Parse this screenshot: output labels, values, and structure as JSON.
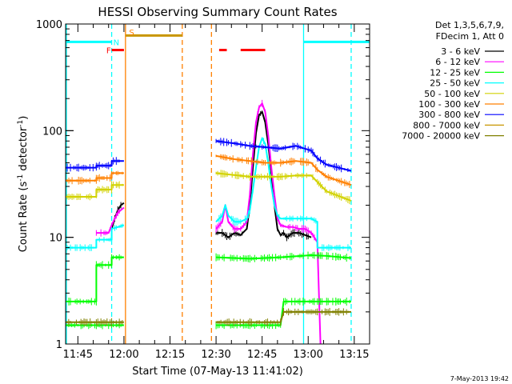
{
  "chart_data": {
    "type": "line",
    "title": "HESSI Observing Summary Count Rates",
    "xlabel": "Start Time (07-May-13 11:41:02)",
    "ylabel_main": "Count Rate (s",
    "ylabel_sup1": "-1",
    "ylabel_mid": " detector",
    "ylabel_sup2": "-1",
    "ylabel_end": ")",
    "x_unit": "minutes after 11:41:02",
    "xlim": [
      0,
      99
    ],
    "ylim": [
      1,
      1000
    ],
    "y_scale": "log",
    "x_ticks": [
      {
        "value": 4,
        "label": "11:45"
      },
      {
        "value": 19,
        "label": "12:00"
      },
      {
        "value": 34,
        "label": "12:15"
      },
      {
        "value": 49,
        "label": "12:30"
      },
      {
        "value": 64,
        "label": "12:45"
      },
      {
        "value": 79,
        "label": "13:00"
      },
      {
        "value": 94,
        "label": "13:15"
      }
    ],
    "y_ticks": [
      {
        "value": 1,
        "label": "1"
      },
      {
        "value": 10,
        "label": "10"
      },
      {
        "value": 100,
        "label": "100"
      },
      {
        "value": 1000,
        "label": "1000"
      }
    ],
    "legend_header": [
      "Det 1,3,5,6,7,9,",
      "FDecim 1, Att 0"
    ],
    "legend_position": "right",
    "series": [
      {
        "name": "3 - 6 keV",
        "color": "#000000",
        "segments": [
          {
            "x": [
              15,
              16,
              17,
              18,
              19
            ],
            "y": [
              12,
              15,
              18,
              20,
              21
            ]
          },
          {
            "x": [
              49,
              51,
              53,
              55,
              57,
              59,
              60,
              61,
              62,
              63,
              64,
              65,
              66,
              67,
              68,
              69,
              70,
              71,
              72,
              74,
              76,
              78,
              80
            ],
            "y": [
              11,
              11,
              10,
              11,
              10.5,
              12,
              20,
              45,
              95,
              140,
              150,
              120,
              75,
              40,
              20,
              12,
              10.5,
              11,
              10,
              11,
              11,
              10.5,
              10
            ]
          }
        ]
      },
      {
        "name": "6 - 12 keV",
        "color": "#ff00ff",
        "segments": [
          {
            "x": [
              10,
              12,
              14,
              15,
              16,
              17,
              18,
              19
            ],
            "y": [
              11,
              11,
              11,
              13,
              15,
              17,
              18,
              19
            ]
          },
          {
            "x": [
              49,
              51,
              52,
              53,
              55,
              57,
              59,
              60,
              61,
              62,
              63,
              64,
              65,
              66,
              67,
              68,
              69,
              70,
              72,
              74,
              76,
              78,
              80,
              81,
              82,
              83
            ],
            "y": [
              12,
              14,
              20,
              14,
              12,
              12,
              14,
              25,
              60,
              120,
              165,
              180,
              150,
              90,
              45,
              25,
              15,
              13,
              12.5,
              12.5,
              12,
              12,
              11,
              10,
              9,
              1
            ]
          }
        ]
      },
      {
        "name": "12 - 25 keV",
        "color": "#00ff00",
        "segments": [
          {
            "x": [
              0,
              10,
              10,
              15,
              15,
              19
            ],
            "y": [
              2.5,
              2.5,
              5.5,
              5.5,
              6.5,
              6.5
            ]
          },
          {
            "x": [
              49,
              60,
              70,
              80,
              85,
              90,
              93
            ],
            "y": [
              6.5,
              6.3,
              6.5,
              6.8,
              6.7,
              6.5,
              6.4
            ]
          },
          {
            "x": [
              0,
              5,
              10,
              15,
              19
            ],
            "y": [
              1.5,
              1.5,
              1.5,
              1.5,
              1.5
            ]
          },
          {
            "x": [
              49,
              60,
              70,
              71,
              80,
              85,
              90,
              93
            ],
            "y": [
              1.5,
              1.5,
              1.5,
              2.5,
              2.5,
              2.5,
              2.5,
              2.5
            ]
          }
        ]
      },
      {
        "name": "25 - 50 keV",
        "color": "#00ffff",
        "segments": [
          {
            "x": [
              0,
              10,
              10,
              15,
              15,
              19
            ],
            "y": [
              8,
              8,
              9.5,
              9.5,
              12,
              13
            ]
          },
          {
            "x": [
              49,
              51,
              52,
              53,
              55,
              57,
              59,
              60,
              61,
              62,
              63,
              64,
              65,
              66,
              67,
              68,
              69,
              70,
              75,
              80,
              82,
              82,
              93
            ],
            "y": [
              14,
              16,
              20,
              16,
              14,
              14,
              15,
              18,
              28,
              45,
              70,
              85,
              75,
              50,
              30,
              20,
              16,
              15,
              15,
              15,
              14,
              8,
              8
            ]
          }
        ]
      },
      {
        "name": "50 - 100 keV",
        "color": "#d2d200",
        "segments": [
          {
            "x": [
              0,
              10,
              10,
              15,
              15,
              19
            ],
            "y": [
              24,
              24,
              28,
              28,
              31,
              31
            ]
          },
          {
            "x": [
              49,
              60,
              70,
              75,
              80,
              82,
              85,
              93
            ],
            "y": [
              40,
              37,
              37,
              38,
              38,
              33,
              27,
              22
            ]
          }
        ]
      },
      {
        "name": "100 - 300 keV",
        "color": "#ff8000",
        "segments": [
          {
            "x": [
              0,
              10,
              10,
              15,
              15,
              19
            ],
            "y": [
              34,
              34,
              36,
              36,
              40,
              40
            ]
          },
          {
            "x": [
              49,
              55,
              60,
              65,
              70,
              75,
              80,
              82,
              85,
              93
            ],
            "y": [
              58,
              54,
              52,
              50,
              50,
              52,
              50,
              43,
              37,
              31
            ]
          }
        ]
      },
      {
        "name": "300 - 800 keV",
        "color": "#0000ff",
        "segments": [
          {
            "x": [
              0,
              10,
              10,
              15,
              15,
              19
            ],
            "y": [
              45,
              45,
              47,
              47,
              52,
              52
            ]
          },
          {
            "x": [
              49,
              55,
              60,
              65,
              70,
              75,
              80,
              82,
              85,
              93
            ],
            "y": [
              80,
              76,
              72,
              70,
              68,
              72,
              65,
              55,
              48,
              42
            ]
          }
        ]
      },
      {
        "name": "800 - 7000 keV",
        "color": "#c89600",
        "segments": [
          {
            "x": [
              19.5,
              38
            ],
            "y": [
              780,
              780
            ]
          }
        ]
      },
      {
        "name": "7000 - 20000 keV",
        "color": "#808000",
        "segments": [
          {
            "x": [
              0,
              5,
              10,
              15,
              19
            ],
            "y": [
              1.6,
              1.6,
              1.6,
              1.6,
              1.6
            ]
          },
          {
            "x": [
              49,
              60,
              70,
              71,
              80,
              85,
              90,
              93
            ],
            "y": [
              1.6,
              1.6,
              1.6,
              2.0,
              2.0,
              2.0,
              2.0,
              2.0
            ]
          }
        ]
      }
    ],
    "red_bars": [
      {
        "x": [
          15,
          19
        ],
        "y": 570
      },
      {
        "x": [
          50,
          52.5
        ],
        "y": 570
      },
      {
        "x": [
          57,
          65
        ],
        "y": 570
      }
    ],
    "flags": [
      {
        "label": "F",
        "color": "#ff0000",
        "x": 14,
        "y": 570
      },
      {
        "label": "N",
        "color": "#00ffff",
        "x": 16.5,
        "y": 680
      },
      {
        "label": "S",
        "color": "#ff8000",
        "x": 21.5,
        "y": 840
      }
    ],
    "night_band": {
      "color": "#00ffff",
      "y": 680,
      "segments": [
        [
          0,
          15
        ],
        [
          77.5,
          99
        ]
      ]
    },
    "vertical_lines": [
      {
        "x": 15,
        "color": "#00ffff",
        "style": "dashed"
      },
      {
        "x": 19.5,
        "color": "#ff8000",
        "style": "solid"
      },
      {
        "x": 38,
        "color": "#ff8000",
        "style": "dashed"
      },
      {
        "x": 47.5,
        "color": "#ff8000",
        "style": "dashed"
      },
      {
        "x": 77.5,
        "color": "#00ffff",
        "style": "solid"
      },
      {
        "x": 93,
        "color": "#00ffff",
        "style": "dashed"
      },
      {
        "x": -0.3,
        "color": "#00ffff",
        "style": "solid"
      }
    ]
  },
  "footer": {
    "date": "7-May-2013 19:42"
  }
}
